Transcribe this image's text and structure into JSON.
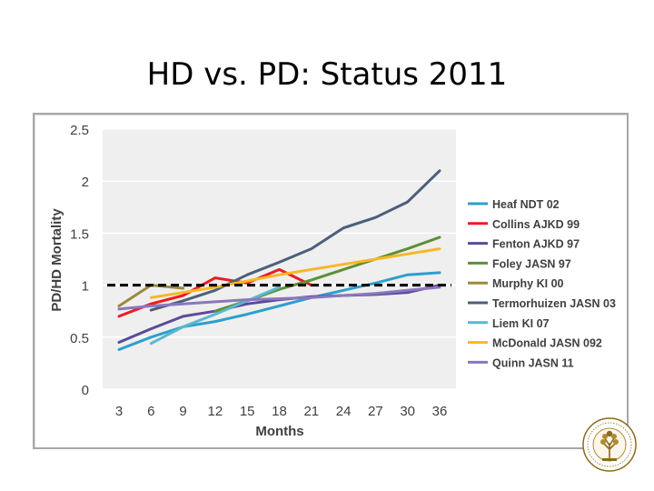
{
  "slide": {
    "title": "HD vs. PD: Status 2011"
  },
  "logo": {
    "name": "society-seal",
    "primary_color": "#8b6a1f",
    "accent_color": "#b38a2e"
  },
  "colors": {
    "plot_bg": "#efefef",
    "grid": "#ffffff",
    "axis_text": "#404040",
    "reference_line": "#000000"
  },
  "chart_data": {
    "type": "line",
    "title": "",
    "xlabel": "Months",
    "ylabel": "PD/HD Mortality",
    "categories": [
      "3",
      "6",
      "9",
      "12",
      "15",
      "18",
      "21",
      "24",
      "27",
      "30",
      "36"
    ],
    "ylim": [
      0,
      2.5
    ],
    "yticks": [
      "0",
      "0.5",
      "1",
      "1.5",
      "2",
      "2.5"
    ],
    "yticks_values": [
      0,
      0.5,
      1,
      1.5,
      2,
      2.5
    ],
    "reference_line": {
      "value": 1,
      "style": "dashed"
    },
    "legend_position": "right",
    "series": [
      {
        "name": "Heaf NDT 02",
        "color": "#2e9fcd",
        "values": [
          0.38,
          0.5,
          0.6,
          0.65,
          0.72,
          0.8,
          0.88,
          0.95,
          1.02,
          1.1,
          1.12
        ]
      },
      {
        "name": "Collins AJKD 99",
        "color": "#ea1c24",
        "values": [
          0.7,
          0.82,
          0.9,
          1.07,
          1.02,
          1.15,
          1.0,
          null,
          null,
          null,
          null
        ]
      },
      {
        "name": "Fenton AJKD 97",
        "color": "#5b4a99",
        "values": [
          0.45,
          0.58,
          0.7,
          0.75,
          0.82,
          0.86,
          0.89,
          0.9,
          0.91,
          0.93,
          1.0
        ]
      },
      {
        "name": "Foley JASN 97",
        "color": "#5d8f34",
        "values": [
          null,
          null,
          null,
          0.75,
          0.85,
          0.96,
          1.05,
          1.15,
          1.25,
          1.35,
          1.46
        ]
      },
      {
        "name": "Murphy KI 00",
        "color": "#9a8a3e",
        "values": [
          0.8,
          1.0,
          0.97,
          null,
          null,
          null,
          null,
          null,
          null,
          null,
          null
        ]
      },
      {
        "name": "Termorhuizen JASN 03",
        "color": "#4c5f7a",
        "values": [
          null,
          0.76,
          0.85,
          0.95,
          1.1,
          1.22,
          1.35,
          1.55,
          1.65,
          1.8,
          2.1
        ]
      },
      {
        "name": "Liem KI 07",
        "color": "#5ab7cf",
        "values": [
          null,
          0.44,
          0.6,
          0.72,
          0.85,
          0.98,
          null,
          null,
          null,
          null,
          null
        ]
      },
      {
        "name": "McDonald JASN 092",
        "color": "#f7b825",
        "values": [
          null,
          0.88,
          0.93,
          0.98,
          1.04,
          1.1,
          1.15,
          1.2,
          1.25,
          1.3,
          1.35
        ]
      },
      {
        "name": "Quinn JASN 11",
        "color": "#8b77bd",
        "values": [
          0.77,
          0.8,
          0.82,
          0.84,
          0.86,
          0.87,
          0.88,
          0.9,
          0.92,
          0.95,
          0.98
        ]
      }
    ]
  }
}
